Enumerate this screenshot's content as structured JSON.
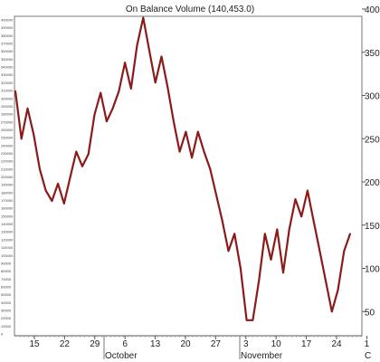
{
  "chart_data": {
    "type": "line",
    "title": "On Balance Volume (140,453.0)",
    "ylim": [
      0,
      400
    ],
    "yticks": [
      "50",
      "100",
      "150",
      "200",
      "250",
      "300",
      "350",
      "400"
    ],
    "yticks_left": [
      "400000",
      "390000",
      "380000",
      "370000",
      "360000",
      "350000",
      "340000",
      "330000",
      "320000",
      "310000",
      "300000",
      "290000",
      "280000",
      "270000",
      "260000",
      "250000",
      "240000",
      "230000",
      "220000",
      "210000",
      "200000",
      "190000",
      "180000",
      "170000",
      "160000",
      "150000",
      "140000",
      "130000",
      "120000",
      "110000",
      "100000",
      "90000",
      "80000",
      "70000",
      "60000",
      "50000",
      "40000",
      "30000",
      "20000",
      "10000",
      "0"
    ],
    "xtick_labels": [
      "15",
      "22",
      "29",
      "6",
      "13",
      "20",
      "27",
      "3",
      "10",
      "17",
      "24",
      "1"
    ],
    "months": [
      "October",
      "November",
      "C"
    ],
    "grid": false,
    "color": "#8b1a1a",
    "series": [
      {
        "values": [
          305,
          250,
          285,
          255,
          215,
          190,
          178,
          198,
          175,
          205,
          235,
          218,
          232,
          278,
          303,
          270,
          285,
          305,
          338,
          308,
          358,
          390,
          352,
          315,
          345,
          310,
          270,
          235,
          258,
          228,
          258,
          235,
          215,
          185,
          155,
          120,
          140,
          100,
          40,
          40,
          85,
          140,
          110,
          145,
          95,
          145,
          180,
          160,
          190,
          155,
          120,
          85,
          50,
          75,
          120,
          140
        ]
      }
    ]
  }
}
